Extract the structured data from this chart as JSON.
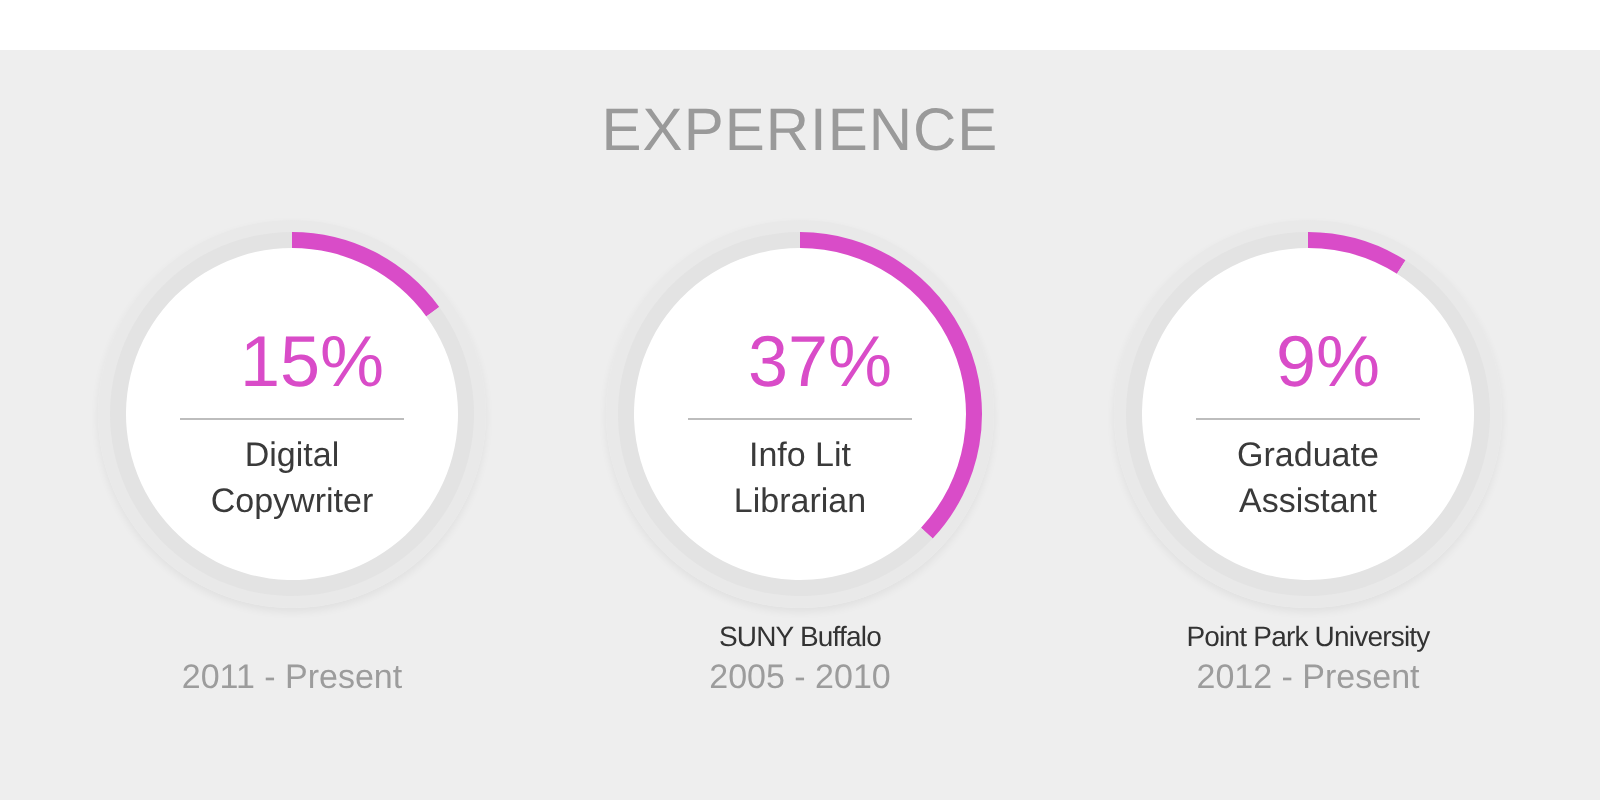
{
  "chart_data": [
    {
      "type": "other",
      "title": "EXPERIENCE"
    },
    {
      "type": "donut",
      "title": "Digital Copywriter",
      "categories": [
        null,
        null
      ],
      "values": [
        15,
        85
      ],
      "colors": [
        "#d94cc8",
        "#e3e3e3"
      ],
      "value_labels": [
        "15%",
        null
      ],
      "annotations": [
        "2011 - Present"
      ]
    },
    {
      "type": "donut",
      "title": "Info Lit Librarian",
      "categories": [
        null,
        null
      ],
      "values": [
        37,
        63
      ],
      "colors": [
        "#d94cc8",
        "#e3e3e3"
      ],
      "value_labels": [
        "37%",
        null
      ],
      "annotations": [
        "SUNY Buffalo",
        "2005 - 2010"
      ]
    },
    {
      "type": "donut",
      "title": "Graduate Assistant",
      "categories": [
        null,
        null
      ],
      "values": [
        9,
        91
      ],
      "colors": [
        "#d94cc8",
        "#e3e3e3"
      ],
      "value_labels": [
        "9%",
        null
      ],
      "annotations": [
        "Point Park University",
        "2012 - Present"
      ]
    }
  ]
}
